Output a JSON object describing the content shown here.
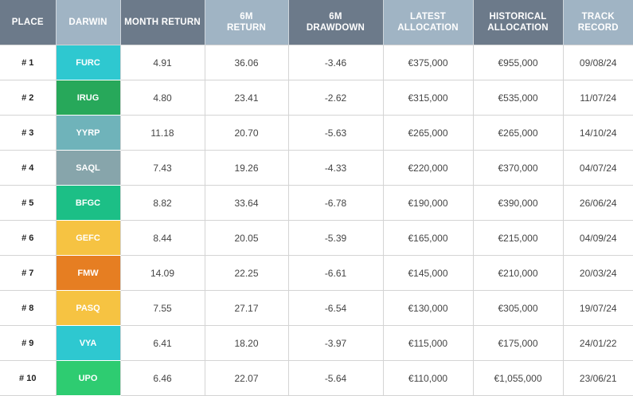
{
  "headers": {
    "place": "PLACE",
    "darwin": "DARWIN",
    "month_return": "MONTH RETURN",
    "six_m_return": "6M\nRETURN",
    "six_m_drawdown": "6M\nDRAWDOWN",
    "latest_allocation": "LATEST\nALLOCATION",
    "historical_allocation": "HISTORICAL\nALLOCATION",
    "track_record": "TRACK\nRECORD"
  },
  "colors": {
    "header_dark": "#6c7a8a",
    "header_light": "#a0b4c4"
  },
  "rows": [
    {
      "place": "# 1",
      "darwin": "FURC",
      "color": "#2ec8d0",
      "month_return": "4.91",
      "six_m_return": "36.06",
      "six_m_drawdown": "-3.46",
      "latest_allocation": "€375,000",
      "historical_allocation": "€955,000",
      "track_record": "09/08/24"
    },
    {
      "place": "# 2",
      "darwin": "IRUG",
      "color": "#27a85a",
      "month_return": "4.80",
      "six_m_return": "23.41",
      "six_m_drawdown": "-2.62",
      "latest_allocation": "€315,000",
      "historical_allocation": "€535,000",
      "track_record": "11/07/24"
    },
    {
      "place": "# 3",
      "darwin": "YYRP",
      "color": "#6fb3ba",
      "month_return": "11.18",
      "six_m_return": "20.70",
      "six_m_drawdown": "-5.63",
      "latest_allocation": "€265,000",
      "historical_allocation": "€265,000",
      "track_record": "14/10/24"
    },
    {
      "place": "# 4",
      "darwin": "SAQL",
      "color": "#87a5ab",
      "month_return": "7.43",
      "six_m_return": "19.26",
      "six_m_drawdown": "-4.33",
      "latest_allocation": "€220,000",
      "historical_allocation": "€370,000",
      "track_record": "04/07/24"
    },
    {
      "place": "# 5",
      "darwin": "BFGC",
      "color": "#1cbf86",
      "month_return": "8.82",
      "six_m_return": "33.64",
      "six_m_drawdown": "-6.78",
      "latest_allocation": "€190,000",
      "historical_allocation": "€390,000",
      "track_record": "26/06/24"
    },
    {
      "place": "# 6",
      "darwin": "GEFC",
      "color": "#f6c342",
      "month_return": "8.44",
      "six_m_return": "20.05",
      "six_m_drawdown": "-5.39",
      "latest_allocation": "€165,000",
      "historical_allocation": "€215,000",
      "track_record": "04/09/24"
    },
    {
      "place": "# 7",
      "darwin": "FMW",
      "color": "#e67e22",
      "month_return": "14.09",
      "six_m_return": "22.25",
      "six_m_drawdown": "-6.61",
      "latest_allocation": "€145,000",
      "historical_allocation": "€210,000",
      "track_record": "20/03/24"
    },
    {
      "place": "# 8",
      "darwin": "PASQ",
      "color": "#f6c342",
      "month_return": "7.55",
      "six_m_return": "27.17",
      "six_m_drawdown": "-6.54",
      "latest_allocation": "€130,000",
      "historical_allocation": "€305,000",
      "track_record": "19/07/24"
    },
    {
      "place": "# 9",
      "darwin": "VYA",
      "color": "#2ec8d0",
      "month_return": "6.41",
      "six_m_return": "18.20",
      "six_m_drawdown": "-3.97",
      "latest_allocation": "€115,000",
      "historical_allocation": "€175,000",
      "track_record": "24/01/22"
    },
    {
      "place": "# 10",
      "darwin": "UPO",
      "color": "#2ecc71",
      "month_return": "6.46",
      "six_m_return": "22.07",
      "six_m_drawdown": "-5.64",
      "latest_allocation": "€110,000",
      "historical_allocation": "€1,055,000",
      "track_record": "23/06/21"
    }
  ]
}
